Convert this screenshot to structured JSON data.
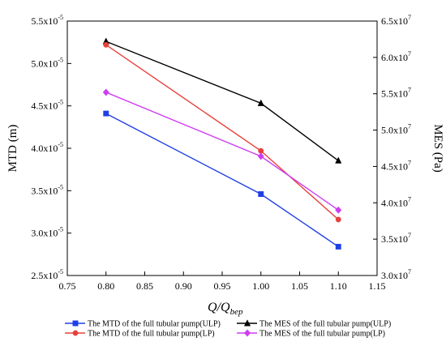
{
  "chart_data": {
    "type": "line",
    "xlabel": "Q/Q",
    "xlabel_sub": "bep",
    "ylabel_left": "MTD (m)",
    "ylabel_right": "MES (Pa)",
    "x_ticks": [
      "0.75",
      "0.80",
      "0.85",
      "0.90",
      "0.95",
      "1.00",
      "1.05",
      "1.10",
      "1.15"
    ],
    "left_ticks": [
      {
        "mant": "2.5x10",
        "exp": "-5"
      },
      {
        "mant": "3.0x10",
        "exp": "-5"
      },
      {
        "mant": "3.5x10",
        "exp": "-5"
      },
      {
        "mant": "4.0x10",
        "exp": "-5"
      },
      {
        "mant": "4.5x10",
        "exp": "-5"
      },
      {
        "mant": "5.0x10",
        "exp": "-5"
      },
      {
        "mant": "5.5x10",
        "exp": "-5"
      }
    ],
    "right_ticks": [
      {
        "mant": "3.0x10",
        "exp": "7"
      },
      {
        "mant": "3.5x10",
        "exp": "7"
      },
      {
        "mant": "4.0x10",
        "exp": "7"
      },
      {
        "mant": "4.5x10",
        "exp": "7"
      },
      {
        "mant": "5.0x10",
        "exp": "7"
      },
      {
        "mant": "5.5x10",
        "exp": "7"
      },
      {
        "mant": "6.0x10",
        "exp": "7"
      },
      {
        "mant": "6.5x10",
        "exp": "7"
      }
    ],
    "xlim": [
      0.75,
      1.15
    ],
    "ylim_left": [
      2.5e-05,
      5.5e-05
    ],
    "ylim_right": [
      30000000.0,
      65000000.0
    ],
    "x": [
      0.8,
      1.0,
      1.1
    ],
    "series": [
      {
        "name": "The MTD of the full tubular pump(ULP)",
        "axis": "left",
        "color": "#1f3fe6",
        "marker": "square",
        "values": [
          4.41e-05,
          3.46e-05,
          2.84e-05
        ]
      },
      {
        "name": "The MES of the full tubular pump(ULP)",
        "axis": "right",
        "color": "#000000",
        "marker": "triangle",
        "values": [
          62200000.0,
          53700000.0,
          45800000.0
        ]
      },
      {
        "name": "The MTD of the full tubular pump(LP)",
        "axis": "left",
        "color": "#e8413c",
        "marker": "circle",
        "values": [
          5.22e-05,
          3.97e-05,
          3.16e-05
        ]
      },
      {
        "name": "The MES of the full tubular pump(LP)",
        "axis": "right",
        "color": "#cf3cf2",
        "marker": "diamond",
        "values": [
          55200000.0,
          46400000.0,
          39000000.0
        ]
      }
    ],
    "grid": false,
    "legend_position": "bottom"
  }
}
